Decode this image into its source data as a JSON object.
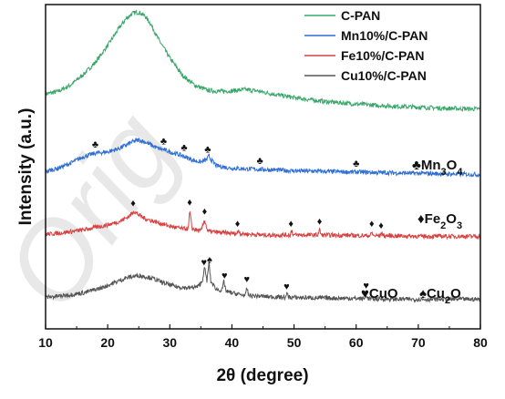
{
  "chart_data": {
    "type": "line",
    "xlabel_prefix": "2",
    "xlabel_theta": "θ",
    "xlabel_suffix": " (degree)",
    "ylabel": "Intensity (a.u.)",
    "xlim": [
      10,
      80
    ],
    "x_ticks": [
      10,
      20,
      30,
      40,
      50,
      60,
      70,
      80
    ],
    "grid": false,
    "legend_position": "top-right",
    "watermark": "Orig",
    "series": [
      {
        "name": "C-PAN",
        "color": "#3aa66a",
        "base": 3.0,
        "points": [
          [
            10,
            0.28
          ],
          [
            12,
            0.32
          ],
          [
            14,
            0.42
          ],
          [
            16,
            0.58
          ],
          [
            18,
            0.78
          ],
          [
            20,
            1.05
          ],
          [
            22,
            1.35
          ],
          [
            23,
            1.48
          ],
          [
            24,
            1.56
          ],
          [
            25,
            1.58
          ],
          [
            26,
            1.52
          ],
          [
            27,
            1.38
          ],
          [
            28,
            1.18
          ],
          [
            30,
            0.85
          ],
          [
            32,
            0.58
          ],
          [
            34,
            0.42
          ],
          [
            36,
            0.34
          ],
          [
            38,
            0.32
          ],
          [
            40,
            0.33
          ],
          [
            42,
            0.35
          ],
          [
            44,
            0.33
          ],
          [
            46,
            0.29
          ],
          [
            50,
            0.22
          ],
          [
            55,
            0.16
          ],
          [
            60,
            0.12
          ],
          [
            65,
            0.09
          ],
          [
            70,
            0.07
          ],
          [
            75,
            0.05
          ],
          [
            80,
            0.04
          ]
        ],
        "peaks": []
      },
      {
        "name": "Mn10%/C-PAN",
        "color": "#2f6fd4",
        "base": 2.0,
        "points": [
          [
            10,
            0.05
          ],
          [
            12,
            0.1
          ],
          [
            14,
            0.18
          ],
          [
            16,
            0.28
          ],
          [
            18,
            0.34
          ],
          [
            20,
            0.36
          ],
          [
            22,
            0.42
          ],
          [
            24,
            0.52
          ],
          [
            25,
            0.55
          ],
          [
            26,
            0.52
          ],
          [
            28,
            0.42
          ],
          [
            29.5,
            0.38
          ],
          [
            30,
            0.36
          ],
          [
            32,
            0.3
          ],
          [
            33,
            0.26
          ],
          [
            34,
            0.22
          ],
          [
            35,
            0.2
          ],
          [
            36,
            0.24
          ],
          [
            36.3,
            0.3
          ],
          [
            36.6,
            0.24
          ],
          [
            37.5,
            0.14
          ],
          [
            40,
            0.1
          ],
          [
            45,
            0.08
          ],
          [
            50,
            0.06
          ],
          [
            55,
            0.05
          ],
          [
            60,
            0.04
          ],
          [
            65,
            0.03
          ],
          [
            70,
            0.02
          ],
          [
            80,
            0.0
          ]
        ],
        "phase_label": "Mn",
        "phase_sub1": "3",
        "phase_mid": "O",
        "phase_sub2": "4",
        "phase_symbol": "♣",
        "peaks": [
          18.0,
          29.0,
          32.3,
          36.1,
          44.5,
          60.0
        ]
      },
      {
        "name": "Fe10%/C-PAN",
        "color": "#d94040",
        "base": 1.0,
        "points": [
          [
            10,
            0.05
          ],
          [
            13,
            0.08
          ],
          [
            16,
            0.12
          ],
          [
            18,
            0.16
          ],
          [
            20,
            0.2
          ],
          [
            22,
            0.26
          ],
          [
            23.5,
            0.34
          ],
          [
            24.2,
            0.42
          ],
          [
            25,
            0.36
          ],
          [
            26,
            0.3
          ],
          [
            28,
            0.24
          ],
          [
            30,
            0.18
          ],
          [
            32,
            0.14
          ],
          [
            33,
            0.14
          ],
          [
            33.2,
            0.42
          ],
          [
            33.6,
            0.14
          ],
          [
            35,
            0.1
          ],
          [
            35.6,
            0.28
          ],
          [
            36.1,
            0.1
          ],
          [
            38,
            0.08
          ],
          [
            40.8,
            0.06
          ],
          [
            41.1,
            0.12
          ],
          [
            41.4,
            0.06
          ],
          [
            45,
            0.04
          ],
          [
            49.4,
            0.04
          ],
          [
            49.6,
            0.12
          ],
          [
            49.9,
            0.04
          ],
          [
            53.8,
            0.04
          ],
          [
            54.1,
            0.12
          ],
          [
            54.4,
            0.04
          ],
          [
            62.3,
            0.03
          ],
          [
            62.5,
            0.08
          ],
          [
            62.8,
            0.03
          ],
          [
            63.9,
            0.03
          ],
          [
            64.1,
            0.08
          ],
          [
            64.4,
            0.03
          ],
          [
            70,
            0.02
          ],
          [
            80,
            0.02
          ]
        ],
        "phase_label": "Fe",
        "phase_sub1": "2",
        "phase_mid": "O",
        "phase_sub2": "3",
        "phase_symbol": "♦",
        "peaks": [
          24.1,
          33.2,
          35.6,
          40.9,
          49.5,
          54.1,
          62.5,
          64.0
        ]
      },
      {
        "name": "Cu10%/C-PAN",
        "color": "#555555",
        "base": 0.0,
        "points": [
          [
            10,
            0.05
          ],
          [
            13,
            0.08
          ],
          [
            16,
            0.12
          ],
          [
            19,
            0.2
          ],
          [
            21,
            0.28
          ],
          [
            23,
            0.36
          ],
          [
            25,
            0.4
          ],
          [
            27,
            0.36
          ],
          [
            29,
            0.28
          ],
          [
            31,
            0.22
          ],
          [
            33,
            0.2
          ],
          [
            34.5,
            0.22
          ],
          [
            35.2,
            0.3
          ],
          [
            35.6,
            0.52
          ],
          [
            36,
            0.3
          ],
          [
            36.3,
            0.62
          ],
          [
            36.6,
            0.3
          ],
          [
            37.5,
            0.18
          ],
          [
            38.4,
            0.16
          ],
          [
            38.7,
            0.3
          ],
          [
            39.1,
            0.14
          ],
          [
            41,
            0.1
          ],
          [
            42.2,
            0.08
          ],
          [
            42.4,
            0.2
          ],
          [
            42.7,
            0.08
          ],
          [
            46,
            0.06
          ],
          [
            48.7,
            0.05
          ],
          [
            48.9,
            0.12
          ],
          [
            49.2,
            0.05
          ],
          [
            55,
            0.04
          ],
          [
            61.4,
            0.03
          ],
          [
            61.6,
            0.1
          ],
          [
            61.9,
            0.03
          ],
          [
            68,
            0.02
          ],
          [
            75,
            0.02
          ],
          [
            80,
            0.02
          ]
        ],
        "phase_label_1": "CuO",
        "phase_symbol_1": "♥",
        "phase_label_2": "Cu",
        "phase_sub_2": "2",
        "phase_tail_2": "O",
        "phase_symbol_2": "♠",
        "peaks_cuo": [
          35.5,
          38.8,
          42.4,
          48.8,
          61.6
        ],
        "peaks_cu2o": [
          36.4
        ]
      }
    ]
  }
}
